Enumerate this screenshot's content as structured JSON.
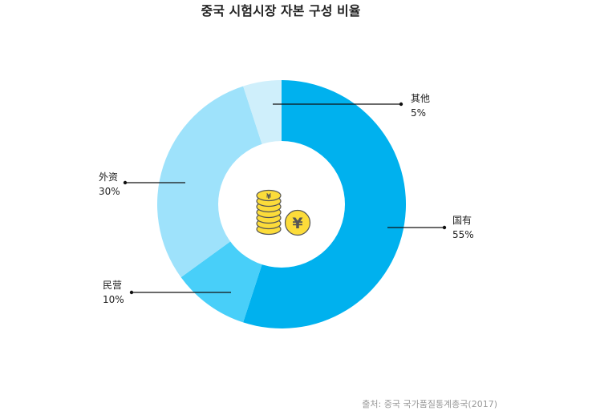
{
  "title": "중국 시험시장 자본 구성 비율",
  "source": "출처: 중국 국가품질통계총국(2017)",
  "center_icon": "yuan-coins-icon",
  "colors": {
    "state": "#00b1ee",
    "private": "#48cff9",
    "foreign": "#9ee2fb",
    "other": "#cfeffb"
  },
  "labels": {
    "state": {
      "name": "国有",
      "value": "55%"
    },
    "private": {
      "name": "民营",
      "value": "10%"
    },
    "foreign": {
      "name": "外资",
      "value": "30%"
    },
    "other": {
      "name": "其他",
      "value": "5%"
    }
  },
  "chart_data": {
    "type": "pie",
    "subtype": "donut",
    "title": "중국 시험시장 자본 구성 비율",
    "categories": [
      "国有",
      "民营",
      "外资",
      "其他"
    ],
    "values": [
      55,
      10,
      30,
      5
    ],
    "unit": "%",
    "start_angle": "12 o'clock, clockwise",
    "colors": [
      "#00b1ee",
      "#48cff9",
      "#9ee2fb",
      "#cfeffb"
    ],
    "legend": "callout labels with leader lines",
    "source": "출처: 중국 국가품질통계총국(2017)"
  }
}
